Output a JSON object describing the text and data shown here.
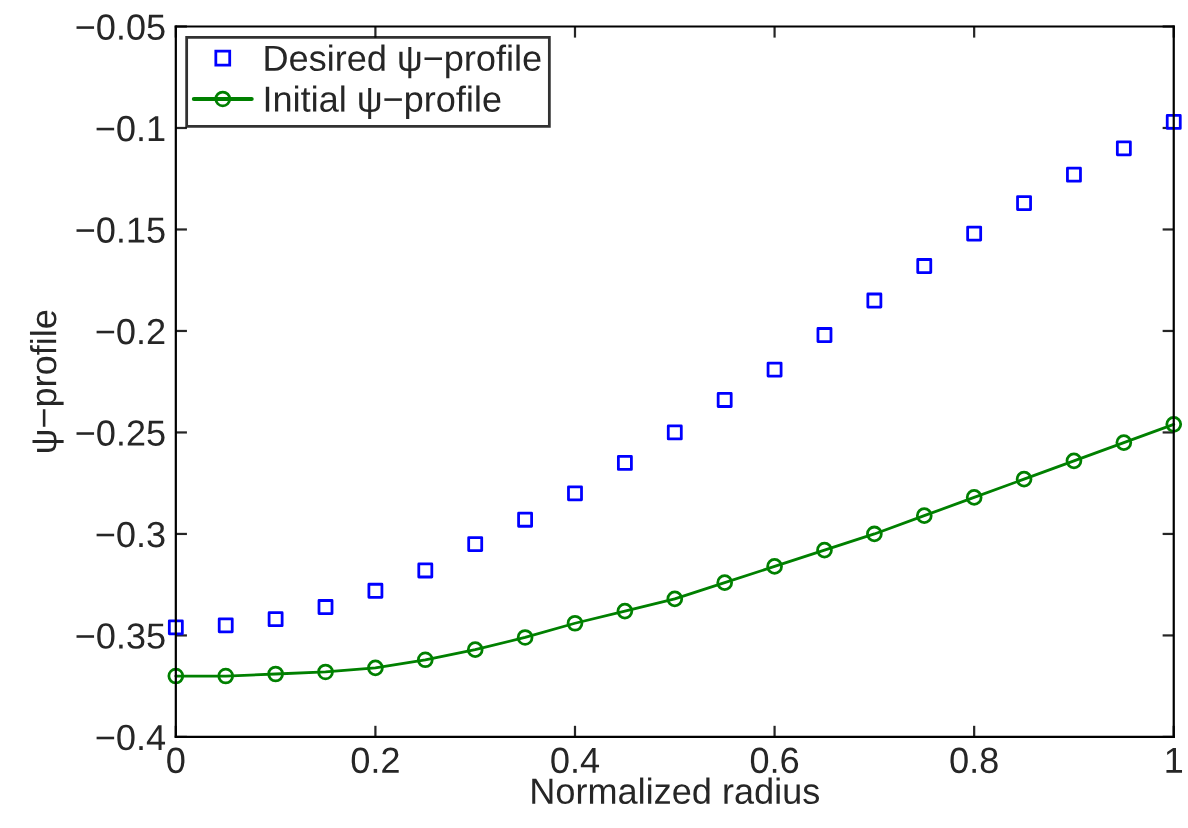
{
  "chart_data": {
    "type": "line",
    "xlabel": "Normalized radius",
    "ylabel": "ψ−profile",
    "xlim": [
      0,
      1
    ],
    "xticks": [
      0,
      0.2,
      0.4,
      0.6,
      0.8,
      1
    ],
    "ylim": [
      -0.4,
      -0.05
    ],
    "yticks": [
      {
        "value": -0.4,
        "label": "−0.4"
      },
      {
        "value": -0.35,
        "label": "−0.35"
      },
      {
        "value": -0.3,
        "label": "−0.3"
      },
      {
        "value": -0.25,
        "label": "−0.25"
      },
      {
        "value": -0.2,
        "label": "−0.2"
      },
      {
        "value": -0.15,
        "label": "−0.15"
      },
      {
        "value": -0.1,
        "label": "−0.1"
      },
      {
        "value": -0.05,
        "label": "−0.05"
      }
    ],
    "x": [
      0,
      0.05,
      0.1,
      0.15,
      0.2,
      0.25,
      0.3,
      0.35,
      0.4,
      0.45,
      0.5,
      0.55,
      0.6,
      0.65,
      0.7,
      0.75,
      0.8,
      0.85,
      0.9,
      0.95,
      1
    ],
    "grid": false,
    "legend": "top left",
    "series": [
      {
        "name": "Desired ψ−profile",
        "type": "scatter",
        "marker": "square",
        "color": "#0000ff",
        "values": [
          -0.346,
          -0.345,
          -0.342,
          -0.336,
          -0.328,
          -0.318,
          -0.305,
          -0.293,
          -0.28,
          -0.265,
          -0.25,
          -0.234,
          -0.219,
          -0.202,
          -0.185,
          -0.168,
          -0.152,
          -0.137,
          -0.123,
          -0.11,
          -0.097
        ]
      },
      {
        "name": "Initial ψ−profile",
        "marker": "circle",
        "line_style": "solid",
        "color": "#008000",
        "values": [
          -0.37,
          -0.37,
          -0.369,
          -0.368,
          -0.366,
          -0.362,
          -0.357,
          -0.351,
          -0.344,
          -0.338,
          -0.332,
          -0.324,
          -0.316,
          -0.308,
          -0.3,
          -0.291,
          -0.282,
          -0.273,
          -0.264,
          -0.255,
          -0.246
        ]
      }
    ]
  }
}
